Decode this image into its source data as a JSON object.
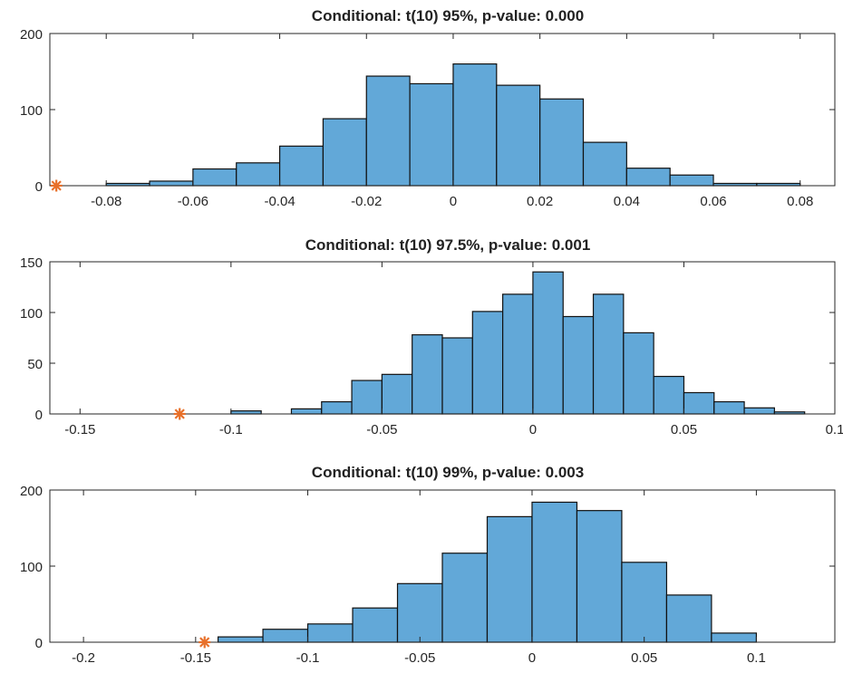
{
  "chart_data": [
    {
      "type": "bar",
      "title": "Conditional: t(10) 95%, p-value: 0.000",
      "xlim": [
        -0.093,
        0.088
      ],
      "ylim": [
        0,
        200
      ],
      "xticks": [
        -0.08,
        -0.06,
        -0.04,
        -0.02,
        0,
        0.02,
        0.04,
        0.06,
        0.08
      ],
      "xtick_labels": [
        "-0.08",
        "-0.06",
        "-0.04",
        "-0.02",
        "0",
        "0.02",
        "0.04",
        "0.06",
        "0.08"
      ],
      "yticks": [
        0,
        100,
        200
      ],
      "ytick_labels": [
        "0",
        "100",
        "200"
      ],
      "bin_edges": [
        -0.08,
        -0.07,
        -0.06,
        -0.05,
        -0.04,
        -0.03,
        -0.02,
        -0.01,
        0,
        0.01,
        0.02,
        0.03,
        0.04,
        0.05,
        0.06,
        0.07,
        0.08
      ],
      "values": [
        3,
        6,
        22,
        30,
        52,
        88,
        144,
        134,
        160,
        132,
        114,
        57,
        23,
        14,
        3,
        3
      ],
      "marker": {
        "x": -0.0915,
        "y": 0
      },
      "colors": {
        "bar": "#62a8d8",
        "edge": "#111111",
        "marker": "#e8702a"
      }
    },
    {
      "type": "bar",
      "title": "Conditional: t(10) 97.5%, p-value: 0.001",
      "xlim": [
        -0.16,
        0.1
      ],
      "ylim": [
        0,
        150
      ],
      "xticks": [
        -0.15,
        -0.1,
        -0.05,
        0,
        0.05,
        0.1
      ],
      "xtick_labels": [
        "-0.15",
        "-0.1",
        "-0.05",
        "0",
        "0.05",
        "0.1"
      ],
      "yticks": [
        0,
        50,
        100,
        150
      ],
      "ytick_labels": [
        "0",
        "50",
        "100",
        "150"
      ],
      "bin_edges": [
        -0.1,
        -0.09,
        -0.08,
        -0.07,
        -0.06,
        -0.05,
        -0.04,
        -0.03,
        -0.02,
        -0.01,
        0,
        0.01,
        0.02,
        0.03,
        0.04,
        0.05,
        0.06,
        0.07,
        0.08,
        0.09
      ],
      "values": [
        3,
        0,
        5,
        12,
        33,
        39,
        78,
        75,
        101,
        118,
        140,
        96,
        118,
        80,
        37,
        21,
        12,
        6,
        2
      ],
      "marker": {
        "x": -0.117,
        "y": 0
      },
      "colors": {
        "bar": "#62a8d8",
        "edge": "#111111",
        "marker": "#e8702a"
      }
    },
    {
      "type": "bar",
      "title": "Conditional: t(10) 99%, p-value: 0.003",
      "xlim": [
        -0.215,
        0.135
      ],
      "ylim": [
        0,
        200
      ],
      "xticks": [
        -0.2,
        -0.15,
        -0.1,
        -0.05,
        0,
        0.05,
        0.1
      ],
      "xtick_labels": [
        "-0.2",
        "-0.15",
        "-0.1",
        "-0.05",
        "0",
        "0.05",
        "0.1"
      ],
      "yticks": [
        0,
        100,
        200
      ],
      "ytick_labels": [
        "0",
        "100",
        "200"
      ],
      "bin_edges": [
        -0.14,
        -0.12,
        -0.1,
        -0.08,
        -0.06,
        -0.04,
        -0.02,
        0,
        0.02,
        0.04,
        0.06,
        0.08,
        0.1
      ],
      "values": [
        7,
        17,
        24,
        45,
        77,
        117,
        165,
        184,
        173,
        105,
        62,
        12
      ],
      "marker": {
        "x": -0.146,
        "y": 0
      },
      "colors": {
        "bar": "#62a8d8",
        "edge": "#111111",
        "marker": "#e8702a"
      }
    }
  ]
}
